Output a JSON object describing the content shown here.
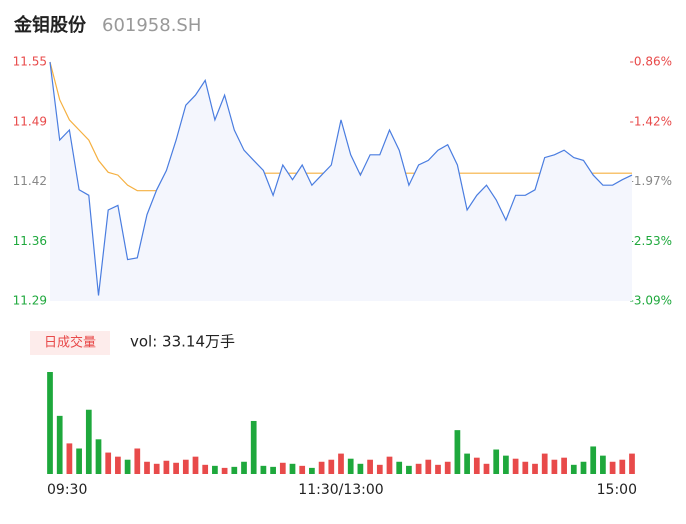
{
  "header": {
    "name": "金钼股份",
    "code": "601958.SH"
  },
  "chart_data": [
    {
      "type": "line",
      "x": [
        0,
        4,
        8,
        12,
        16,
        20,
        24,
        28,
        32,
        36,
        40,
        44,
        48,
        52,
        56,
        60,
        64,
        68,
        72,
        76,
        80,
        84,
        88,
        92,
        96,
        100,
        104,
        108,
        112,
        116,
        120,
        124,
        128,
        132,
        136,
        140,
        144,
        148,
        152,
        156,
        160,
        164,
        168,
        172,
        176,
        180,
        184,
        188,
        192,
        196,
        200,
        204,
        208,
        212,
        216,
        220,
        224,
        228,
        232,
        236,
        240
      ],
      "xlim": [
        0,
        240
      ],
      "xticks": [
        {
          "value": 0,
          "label": "09:30"
        },
        {
          "value": 120,
          "label": "11:30/13:00"
        },
        {
          "value": 240,
          "label": "15:00"
        }
      ],
      "ylim": [
        11.29,
        11.55
      ],
      "yticks": [
        {
          "value": 11.29,
          "label": "11.29"
        },
        {
          "value": 11.355,
          "label": "11.36"
        },
        {
          "value": 11.42,
          "label": "11.42"
        },
        {
          "value": 11.485,
          "label": "11.49"
        },
        {
          "value": 11.55,
          "label": "11.55"
        }
      ],
      "y2lim": [
        -3.09,
        -0.86
      ],
      "y2ticks": [
        {
          "value": -3.09,
          "label": "-3.09%"
        },
        {
          "value": -2.5325,
          "label": "-2.53%"
        },
        {
          "value": -1.975,
          "label": "-1.97%"
        },
        {
          "value": -1.4175,
          "label": "-1.42%"
        },
        {
          "value": -0.86,
          "label": "-0.86%"
        }
      ],
      "series": [
        {
          "name": "price",
          "color": "#4a7de0",
          "values": [
            11.55,
            11.465,
            11.476,
            11.411,
            11.405,
            11.296,
            11.389,
            11.394,
            11.335,
            11.337,
            11.384,
            11.411,
            11.432,
            11.465,
            11.503,
            11.514,
            11.53,
            11.487,
            11.514,
            11.476,
            11.454,
            11.443,
            11.432,
            11.405,
            11.438,
            11.422,
            11.438,
            11.416,
            11.427,
            11.438,
            11.487,
            11.449,
            11.427,
            11.449,
            11.449,
            11.476,
            11.454,
            11.416,
            11.438,
            11.443,
            11.454,
            11.46,
            11.438,
            11.389,
            11.405,
            11.416,
            11.4,
            11.378,
            11.405,
            11.405,
            11.411,
            11.446,
            11.449,
            11.454,
            11.446,
            11.443,
            11.427,
            11.416,
            11.416,
            11.422,
            11.427
          ]
        },
        {
          "name": "avg",
          "color": "#f5b041",
          "values": [
            11.55,
            11.509,
            11.487,
            11.476,
            11.465,
            11.443,
            11.43,
            11.427,
            11.416,
            11.41,
            11.41,
            11.41,
            11.41,
            11.41,
            11.418,
            11.418,
            11.418,
            11.429,
            11.429,
            11.429,
            11.429,
            11.429,
            11.429,
            11.429,
            11.429,
            11.429,
            11.429,
            11.429,
            11.429,
            11.429,
            11.429,
            11.429,
            11.429,
            11.429,
            11.429,
            11.429,
            11.429,
            11.429,
            11.429,
            11.429,
            11.429,
            11.429,
            11.429,
            11.429,
            11.429,
            11.429,
            11.429,
            11.429,
            11.429,
            11.429,
            11.429,
            11.429,
            11.429,
            11.429,
            11.429,
            11.429,
            11.429,
            11.429,
            11.429,
            11.429,
            11.429
          ]
        }
      ]
    },
    {
      "type": "bar",
      "legend": "日成交量",
      "label": "vol: 33.14万手",
      "up_color": "#e84a4a",
      "down_color": "#1ea83c",
      "ylim": [
        0,
        100
      ],
      "values": [
        100,
        57,
        30,
        25,
        63,
        34,
        21,
        17,
        14,
        25,
        12,
        10,
        13,
        11,
        14,
        17,
        9,
        8,
        6,
        7,
        12,
        52,
        8,
        7,
        11,
        10,
        8,
        6,
        12,
        14,
        20,
        15,
        10,
        14,
        9,
        17,
        12,
        8,
        10,
        14,
        9,
        12,
        43,
        20,
        16,
        10,
        24,
        18,
        15,
        12,
        10,
        20,
        14,
        16,
        9,
        12,
        27,
        18,
        12,
        14,
        20
      ]
    }
  ]
}
